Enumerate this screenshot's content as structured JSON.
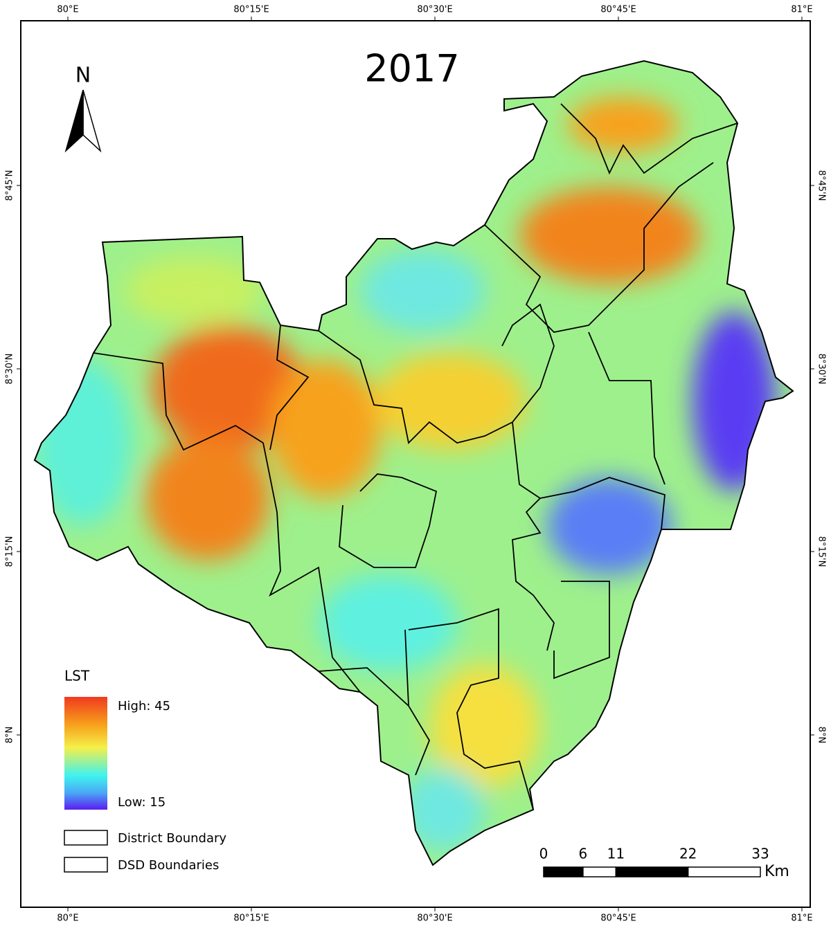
{
  "title": "2017",
  "north": "N",
  "graticule": {
    "longitudes": [
      "80°E",
      "80°15'E",
      "80°30'E",
      "80°45'E",
      "81°E"
    ],
    "latitudes": [
      "8°45'N",
      "8°30'N",
      "8°15'N",
      "8°N"
    ]
  },
  "legend": {
    "title": "LST",
    "high": "High: 45",
    "low": "Low: 15",
    "items": [
      "District Boundary",
      "DSD Boundaries"
    ]
  },
  "scale_bar": {
    "ticks": [
      0,
      6,
      11,
      22,
      33
    ],
    "unit": "Km"
  }
}
